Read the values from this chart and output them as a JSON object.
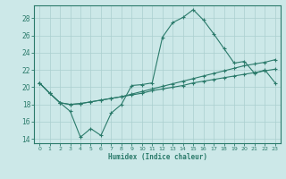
{
  "xlabel": "Humidex (Indice chaleur)",
  "x": [
    0,
    1,
    2,
    3,
    4,
    5,
    6,
    7,
    8,
    9,
    10,
    11,
    12,
    13,
    14,
    15,
    16,
    17,
    18,
    19,
    20,
    21,
    22,
    23
  ],
  "line1": [
    20.5,
    19.3,
    18.2,
    17.2,
    14.2,
    15.2,
    14.4,
    17.0,
    18.0,
    20.2,
    20.3,
    20.5,
    25.8,
    27.5,
    28.1,
    29.0,
    27.8,
    26.2,
    24.5,
    22.8,
    23.0,
    21.6,
    22.0,
    20.5
  ],
  "line2": [
    20.5,
    19.3,
    18.2,
    18.0,
    18.1,
    18.3,
    18.5,
    18.7,
    18.9,
    19.2,
    19.5,
    19.8,
    20.1,
    20.4,
    20.7,
    21.0,
    21.3,
    21.6,
    21.9,
    22.2,
    22.5,
    22.7,
    22.9,
    23.2
  ],
  "line3": [
    20.5,
    19.3,
    18.2,
    18.0,
    18.1,
    18.3,
    18.5,
    18.7,
    18.9,
    19.1,
    19.3,
    19.6,
    19.8,
    20.0,
    20.2,
    20.5,
    20.7,
    20.9,
    21.1,
    21.3,
    21.5,
    21.7,
    21.9,
    22.1
  ],
  "line_color": "#2a7a6a",
  "bg_color": "#cce8e8",
  "grid_color": "#aacfcf",
  "ylim": [
    13.5,
    29.5
  ],
  "yticks": [
    14,
    16,
    18,
    20,
    22,
    24,
    26,
    28
  ],
  "xlim": [
    -0.5,
    23.5
  ],
  "xticks": [
    0,
    1,
    2,
    3,
    4,
    5,
    6,
    7,
    8,
    9,
    10,
    11,
    12,
    13,
    14,
    15,
    16,
    17,
    18,
    19,
    20,
    21,
    22,
    23
  ]
}
